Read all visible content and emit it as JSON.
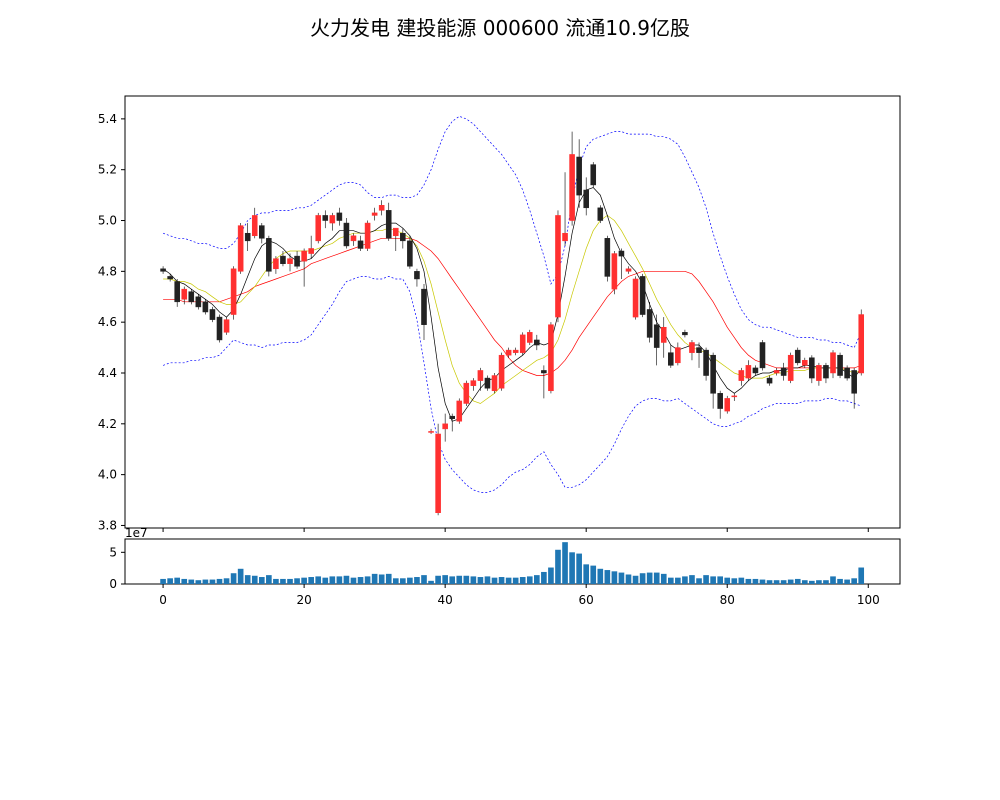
{
  "title": "火力发电 建投能源 000600 流通10.9亿股",
  "chart_data": [
    {
      "type": "candlestick",
      "x_ticks": [
        "0",
        "20",
        "40",
        "60",
        "80",
        "100"
      ],
      "y_ticks": [
        "3.8",
        "4.0",
        "4.2",
        "4.4",
        "4.6",
        "4.8",
        "5.0",
        "5.2",
        "5.4"
      ],
      "ylim": [
        3.79,
        5.49
      ],
      "xlim": [
        -5.4,
        104.5
      ],
      "up_color": "#ff3030",
      "down_color": "#222222",
      "ma_colors": {
        "ma_short": "#000000",
        "ma_mid": "#c8c800",
        "ma_long": "#ff0000",
        "bollinger": "#0000ff"
      },
      "ohlc": [
        [
          4.81,
          4.82,
          4.79,
          4.8
        ],
        [
          4.78,
          4.79,
          4.76,
          4.77
        ],
        [
          4.76,
          4.77,
          4.66,
          4.68
        ],
        [
          4.69,
          4.74,
          4.67,
          4.73
        ],
        [
          4.72,
          4.73,
          4.67,
          4.68
        ],
        [
          4.7,
          4.71,
          4.65,
          4.66
        ],
        [
          4.68,
          4.69,
          4.63,
          4.64
        ],
        [
          4.65,
          4.66,
          4.6,
          4.61
        ],
        [
          4.62,
          4.63,
          4.52,
          4.53
        ],
        [
          4.56,
          4.62,
          4.55,
          4.61
        ],
        [
          4.63,
          4.82,
          4.61,
          4.81
        ],
        [
          4.8,
          4.99,
          4.79,
          4.98
        ],
        [
          4.95,
          4.99,
          4.88,
          4.92
        ],
        [
          4.94,
          5.05,
          4.93,
          5.02
        ],
        [
          4.98,
          4.99,
          4.91,
          4.93
        ],
        [
          4.93,
          4.94,
          4.78,
          4.8
        ],
        [
          4.81,
          4.86,
          4.79,
          4.85
        ],
        [
          4.86,
          4.88,
          4.82,
          4.83
        ],
        [
          4.83,
          4.87,
          4.8,
          4.85
        ],
        [
          4.86,
          4.88,
          4.81,
          4.82
        ],
        [
          4.84,
          4.89,
          4.74,
          4.88
        ],
        [
          4.87,
          4.94,
          4.85,
          4.89
        ],
        [
          4.92,
          5.03,
          4.91,
          5.02
        ],
        [
          5.02,
          5.04,
          4.97,
          5.0
        ],
        [
          4.99,
          5.03,
          4.96,
          5.02
        ],
        [
          5.03,
          5.05,
          4.98,
          5.0
        ],
        [
          4.99,
          5.01,
          4.89,
          4.9
        ],
        [
          4.92,
          4.95,
          4.9,
          4.94
        ],
        [
          4.92,
          4.94,
          4.88,
          4.89
        ],
        [
          4.89,
          5.0,
          4.88,
          4.99
        ],
        [
          5.02,
          5.05,
          5.0,
          5.03
        ],
        [
          5.04,
          5.08,
          5.02,
          5.06
        ],
        [
          5.04,
          5.07,
          4.92,
          4.93
        ],
        [
          4.94,
          4.96,
          4.88,
          4.97
        ],
        [
          4.95,
          4.97,
          4.89,
          4.92
        ],
        [
          4.92,
          4.94,
          4.81,
          4.82
        ],
        [
          4.8,
          4.81,
          4.74,
          4.77
        ],
        [
          4.73,
          4.75,
          4.53,
          4.59
        ],
        [
          4.17,
          4.18,
          4.16,
          4.17
        ],
        [
          3.85,
          4.2,
          3.84,
          4.16
        ],
        [
          4.18,
          4.24,
          4.13,
          4.2
        ],
        [
          4.23,
          4.24,
          4.17,
          4.22
        ],
        [
          4.21,
          4.3,
          4.2,
          4.29
        ],
        [
          4.28,
          4.37,
          4.27,
          4.36
        ],
        [
          4.35,
          4.38,
          4.33,
          4.37
        ],
        [
          4.37,
          4.42,
          4.33,
          4.41
        ],
        [
          4.38,
          4.39,
          4.33,
          4.34
        ],
        [
          4.33,
          4.4,
          4.32,
          4.39
        ],
        [
          4.34,
          4.48,
          4.33,
          4.47
        ],
        [
          4.47,
          4.5,
          4.46,
          4.49
        ],
        [
          4.48,
          4.5,
          4.47,
          4.49
        ],
        [
          4.48,
          4.56,
          4.47,
          4.55
        ],
        [
          4.52,
          4.57,
          4.51,
          4.56
        ],
        [
          4.53,
          4.55,
          4.49,
          4.51
        ],
        [
          4.41,
          4.43,
          4.3,
          4.4
        ],
        [
          4.33,
          4.6,
          4.32,
          4.59
        ],
        [
          4.62,
          5.04,
          4.6,
          5.02
        ],
        [
          4.92,
          5.19,
          4.9,
          4.95
        ],
        [
          5.0,
          5.35,
          4.98,
          5.26
        ],
        [
          5.25,
          5.32,
          5.05,
          5.1
        ],
        [
          5.12,
          5.17,
          5.02,
          5.05
        ],
        [
          5.22,
          5.23,
          5.13,
          5.14
        ],
        [
          5.05,
          5.06,
          4.99,
          5.0
        ],
        [
          4.93,
          4.94,
          4.76,
          4.78
        ],
        [
          4.73,
          4.88,
          4.71,
          4.87
        ],
        [
          4.88,
          4.89,
          4.77,
          4.86
        ],
        [
          4.8,
          4.82,
          4.79,
          4.81
        ],
        [
          4.62,
          4.78,
          4.61,
          4.77
        ],
        [
          4.78,
          4.79,
          4.62,
          4.63
        ],
        [
          4.65,
          4.68,
          4.52,
          4.54
        ],
        [
          4.59,
          4.63,
          4.43,
          4.5
        ],
        [
          4.52,
          4.62,
          4.46,
          4.58
        ],
        [
          4.48,
          4.51,
          4.42,
          4.43
        ],
        [
          4.44,
          4.52,
          4.43,
          4.5
        ],
        [
          4.56,
          4.57,
          4.54,
          4.55
        ],
        [
          4.48,
          4.53,
          4.45,
          4.52
        ],
        [
          4.5,
          4.52,
          4.42,
          4.48
        ],
        [
          4.49,
          4.5,
          4.37,
          4.39
        ],
        [
          4.47,
          4.48,
          4.26,
          4.32
        ],
        [
          4.32,
          4.33,
          4.22,
          4.26
        ],
        [
          4.25,
          4.31,
          4.24,
          4.3
        ],
        [
          4.31,
          4.32,
          4.29,
          4.31
        ],
        [
          4.37,
          4.42,
          4.35,
          4.41
        ],
        [
          4.38,
          4.45,
          4.37,
          4.43
        ],
        [
          4.42,
          4.43,
          4.39,
          4.4
        ],
        [
          4.52,
          4.53,
          4.41,
          4.42
        ],
        [
          4.38,
          4.39,
          4.35,
          4.36
        ],
        [
          4.4,
          4.42,
          4.39,
          4.41
        ],
        [
          4.42,
          4.44,
          4.37,
          4.39
        ],
        [
          4.37,
          4.48,
          4.36,
          4.47
        ],
        [
          4.49,
          4.5,
          4.43,
          4.44
        ],
        [
          4.43,
          4.46,
          4.42,
          4.45
        ],
        [
          4.46,
          4.47,
          4.36,
          4.38
        ],
        [
          4.37,
          4.44,
          4.35,
          4.43
        ],
        [
          4.43,
          4.44,
          4.36,
          4.38
        ],
        [
          4.4,
          4.49,
          4.38,
          4.48
        ],
        [
          4.47,
          4.48,
          4.38,
          4.39
        ],
        [
          4.42,
          4.43,
          4.37,
          4.38
        ],
        [
          4.41,
          4.42,
          4.26,
          4.32
        ],
        [
          4.4,
          4.65,
          4.39,
          4.63
        ]
      ],
      "ma_short": [
        4.81,
        4.79,
        4.76,
        4.75,
        4.73,
        4.71,
        4.69,
        4.67,
        4.64,
        4.62,
        4.65,
        4.71,
        4.78,
        4.85,
        4.9,
        4.92,
        4.91,
        4.89,
        4.86,
        4.84,
        4.84,
        4.85,
        4.88,
        4.91,
        4.93,
        4.96,
        4.96,
        4.96,
        4.95,
        4.95,
        4.96,
        4.98,
        4.99,
        4.99,
        4.97,
        4.94,
        4.89,
        4.8,
        4.62,
        4.42,
        4.28,
        4.21,
        4.22,
        4.26,
        4.3,
        4.34,
        4.37,
        4.38,
        4.41,
        4.43,
        4.45,
        4.47,
        4.5,
        4.52,
        4.51,
        4.52,
        4.63,
        4.78,
        4.95,
        5.07,
        5.12,
        5.13,
        5.1,
        5.02,
        4.93,
        4.87,
        4.83,
        4.8,
        4.75,
        4.67,
        4.6,
        4.56,
        4.51,
        4.49,
        4.5,
        4.51,
        4.51,
        4.48,
        4.43,
        4.38,
        4.34,
        4.32,
        4.34,
        4.37,
        4.39,
        4.4,
        4.4,
        4.41,
        4.41,
        4.42,
        4.42,
        4.43,
        4.43,
        4.42,
        4.42,
        4.42,
        4.42,
        4.4,
        4.38,
        4.42
      ],
      "ma_mid": [
        4.77,
        4.77,
        4.76,
        4.76,
        4.75,
        4.73,
        4.72,
        4.7,
        4.68,
        4.67,
        4.67,
        4.68,
        4.71,
        4.74,
        4.78,
        4.82,
        4.85,
        4.87,
        4.88,
        4.88,
        4.88,
        4.88,
        4.89,
        4.9,
        4.91,
        4.93,
        4.94,
        4.95,
        4.95,
        4.95,
        4.96,
        4.96,
        4.97,
        4.96,
        4.95,
        4.93,
        4.9,
        4.84,
        4.75,
        4.64,
        4.53,
        4.43,
        4.36,
        4.32,
        4.29,
        4.28,
        4.3,
        4.32,
        4.35,
        4.37,
        4.39,
        4.41,
        4.43,
        4.45,
        4.46,
        4.48,
        4.53,
        4.61,
        4.71,
        4.8,
        4.89,
        4.96,
        5.0,
        5.02,
        5.0,
        4.96,
        4.91,
        4.86,
        4.81,
        4.75,
        4.69,
        4.64,
        4.59,
        4.55,
        4.52,
        4.5,
        4.49,
        4.48,
        4.46,
        4.44,
        4.42,
        4.4,
        4.39,
        4.38,
        4.38,
        4.38,
        4.39,
        4.4,
        4.4,
        4.41,
        4.41,
        4.41,
        4.42,
        4.42,
        4.42,
        4.42,
        4.42,
        4.41,
        4.4,
        4.41
      ],
      "ma_long": [
        4.69,
        4.69,
        4.69,
        4.68,
        4.68,
        4.68,
        4.68,
        4.68,
        4.68,
        4.69,
        4.7,
        4.71,
        4.72,
        4.74,
        4.75,
        4.76,
        4.77,
        4.78,
        4.79,
        4.8,
        4.81,
        4.83,
        4.84,
        4.85,
        4.86,
        4.87,
        4.88,
        4.89,
        4.9,
        4.91,
        4.92,
        4.93,
        4.93,
        4.93,
        4.93,
        4.93,
        4.92,
        4.9,
        4.88,
        4.85,
        4.81,
        4.77,
        4.73,
        4.69,
        4.65,
        4.61,
        4.57,
        4.53,
        4.5,
        4.46,
        4.43,
        4.41,
        4.4,
        4.39,
        4.39,
        4.4,
        4.42,
        4.45,
        4.49,
        4.54,
        4.58,
        4.62,
        4.66,
        4.7,
        4.73,
        4.76,
        4.78,
        4.79,
        4.8,
        4.8,
        4.8,
        4.8,
        4.8,
        4.8,
        4.8,
        4.79,
        4.76,
        4.72,
        4.68,
        4.63,
        4.58,
        4.54,
        4.5,
        4.47,
        4.45,
        4.44,
        4.43,
        4.42,
        4.42,
        4.42,
        4.42,
        4.42,
        4.42,
        4.42,
        4.42,
        4.42,
        4.42,
        4.42,
        4.42,
        4.43
      ],
      "boll_upper": [
        4.95,
        4.94,
        4.93,
        4.93,
        4.92,
        4.91,
        4.91,
        4.9,
        4.89,
        4.89,
        4.91,
        4.95,
        5.0,
        5.02,
        5.03,
        5.03,
        5.04,
        5.04,
        5.04,
        5.05,
        5.05,
        5.06,
        5.08,
        5.1,
        5.12,
        5.14,
        5.15,
        5.15,
        5.14,
        5.11,
        5.09,
        5.09,
        5.1,
        5.1,
        5.09,
        5.09,
        5.1,
        5.14,
        5.2,
        5.28,
        5.35,
        5.39,
        5.41,
        5.4,
        5.38,
        5.35,
        5.32,
        5.29,
        5.26,
        5.22,
        5.18,
        5.12,
        5.04,
        4.95,
        4.86,
        4.75,
        4.79,
        4.9,
        5.08,
        5.21,
        5.29,
        5.32,
        5.33,
        5.34,
        5.35,
        5.35,
        5.34,
        5.34,
        5.34,
        5.34,
        5.33,
        5.33,
        5.32,
        5.3,
        5.25,
        5.19,
        5.13,
        5.05,
        4.95,
        4.86,
        4.78,
        4.71,
        4.65,
        4.61,
        4.59,
        4.58,
        4.58,
        4.57,
        4.56,
        4.55,
        4.54,
        4.54,
        4.54,
        4.53,
        4.53,
        4.52,
        4.52,
        4.51,
        4.5,
        4.56
      ],
      "boll_lower": [
        4.43,
        4.44,
        4.44,
        4.44,
        4.45,
        4.45,
        4.46,
        4.46,
        4.47,
        4.5,
        4.53,
        4.52,
        4.51,
        4.51,
        4.5,
        4.51,
        4.51,
        4.52,
        4.52,
        4.52,
        4.53,
        4.55,
        4.59,
        4.63,
        4.67,
        4.72,
        4.76,
        4.77,
        4.78,
        4.78,
        4.77,
        4.77,
        4.78,
        4.77,
        4.77,
        4.72,
        4.61,
        4.44,
        4.26,
        4.13,
        4.06,
        4.02,
        3.99,
        3.96,
        3.94,
        3.93,
        3.93,
        3.94,
        3.96,
        3.99,
        4.01,
        4.02,
        4.04,
        4.07,
        4.09,
        4.04,
        4.0,
        3.95,
        3.95,
        3.96,
        3.98,
        4.01,
        4.04,
        4.07,
        4.12,
        4.18,
        4.23,
        4.27,
        4.29,
        4.3,
        4.3,
        4.29,
        4.29,
        4.3,
        4.28,
        4.26,
        4.24,
        4.22,
        4.2,
        4.19,
        4.19,
        4.2,
        4.21,
        4.23,
        4.24,
        4.26,
        4.27,
        4.28,
        4.28,
        4.28,
        4.28,
        4.29,
        4.29,
        4.29,
        4.3,
        4.3,
        4.29,
        4.29,
        4.28,
        4.27
      ]
    },
    {
      "type": "bar",
      "ylabel_offset": "1e7",
      "y_ticks": [
        "0",
        "5"
      ],
      "ylim": [
        0,
        7.1
      ],
      "x_ticks": [
        "0",
        "20",
        "40",
        "60",
        "80",
        "100"
      ],
      "bar_color": "#1f77b4",
      "values": [
        0.8,
        0.9,
        1.0,
        0.8,
        0.7,
        0.6,
        0.7,
        0.7,
        0.8,
        0.9,
        1.7,
        2.4,
        1.4,
        1.3,
        1.1,
        1.4,
        0.8,
        0.8,
        0.8,
        0.9,
        1.0,
        1.1,
        1.2,
        1.0,
        1.2,
        1.2,
        1.3,
        1.0,
        1.1,
        1.2,
        1.6,
        1.5,
        1.6,
        0.9,
        0.9,
        1.0,
        1.1,
        1.4,
        0.5,
        1.3,
        1.4,
        1.2,
        1.3,
        1.3,
        1.2,
        1.1,
        1.2,
        1.0,
        1.1,
        1.0,
        1.0,
        1.1,
        1.2,
        1.4,
        1.9,
        2.6,
        5.4,
        6.6,
        5.0,
        4.8,
        3.1,
        2.9,
        2.4,
        2.2,
        2.0,
        1.8,
        1.5,
        1.3,
        1.7,
        1.8,
        1.8,
        1.6,
        1.0,
        1.0,
        1.2,
        1.4,
        0.9,
        1.4,
        1.2,
        1.2,
        1.0,
        0.9,
        1.0,
        0.8,
        0.8,
        0.7,
        0.6,
        0.6,
        0.6,
        0.7,
        0.8,
        0.6,
        0.5,
        0.6,
        0.6,
        1.2,
        0.8,
        0.7,
        0.9,
        2.6
      ]
    }
  ]
}
